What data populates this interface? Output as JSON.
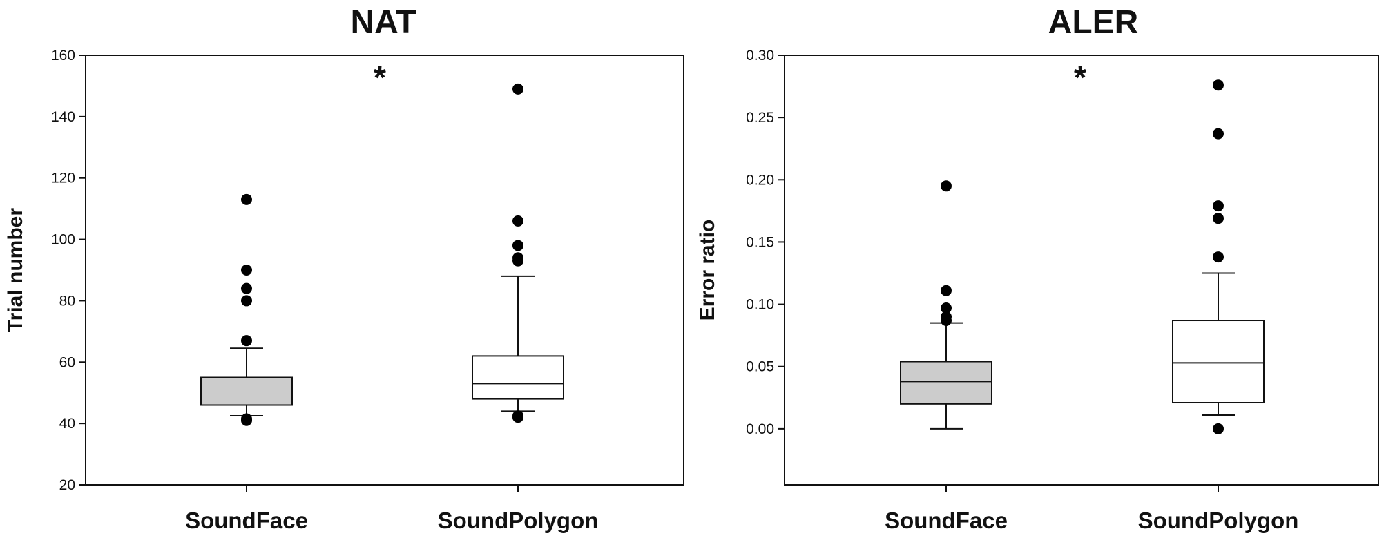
{
  "chart_data": [
    {
      "type": "box",
      "title": "NAT",
      "ylabel": "Trial number",
      "ylim": [
        20,
        160
      ],
      "yticks": [
        "20",
        "40",
        "60",
        "80",
        "100",
        "120",
        "140",
        "160"
      ],
      "categories": [
        "SoundFace",
        "SoundPolygon"
      ],
      "boxes": [
        {
          "category": "SoundFace",
          "whisker_low": 42.5,
          "q1": 46,
          "median": 46,
          "q3": 55,
          "whisker_high": 64.5,
          "fill": "#cccccc",
          "outliers": [
            41,
            41.5,
            67,
            80,
            84,
            90,
            113
          ]
        },
        {
          "category": "SoundPolygon",
          "whisker_low": 44,
          "q1": 48,
          "median": 53,
          "q3": 62,
          "whisker_high": 88,
          "fill": "#ffffff",
          "outliers": [
            42,
            42.5,
            93,
            94,
            98,
            106,
            149
          ]
        }
      ],
      "annotation": "*"
    },
    {
      "type": "box",
      "title": "ALER",
      "ylabel": "Error ratio",
      "ylim": [
        -0.045,
        0.3
      ],
      "yticks": [
        "0.00",
        "0.05",
        "0.10",
        "0.15",
        "0.20",
        "0.25",
        "0.30"
      ],
      "categories": [
        "SoundFace",
        "SoundPolygon"
      ],
      "boxes": [
        {
          "category": "SoundFace",
          "whisker_low": 0.0,
          "q1": 0.02,
          "median": 0.038,
          "q3": 0.054,
          "whisker_high": 0.085,
          "fill": "#cccccc",
          "outliers": [
            0.087,
            0.09,
            0.097,
            0.111,
            0.195
          ]
        },
        {
          "category": "SoundPolygon",
          "whisker_low": 0.011,
          "q1": 0.021,
          "median": 0.053,
          "q3": 0.087,
          "whisker_high": 0.125,
          "fill": "#ffffff",
          "outliers": [
            0.0,
            0.138,
            0.169,
            0.179,
            0.237,
            0.276
          ]
        }
      ],
      "annotation": "*"
    }
  ]
}
